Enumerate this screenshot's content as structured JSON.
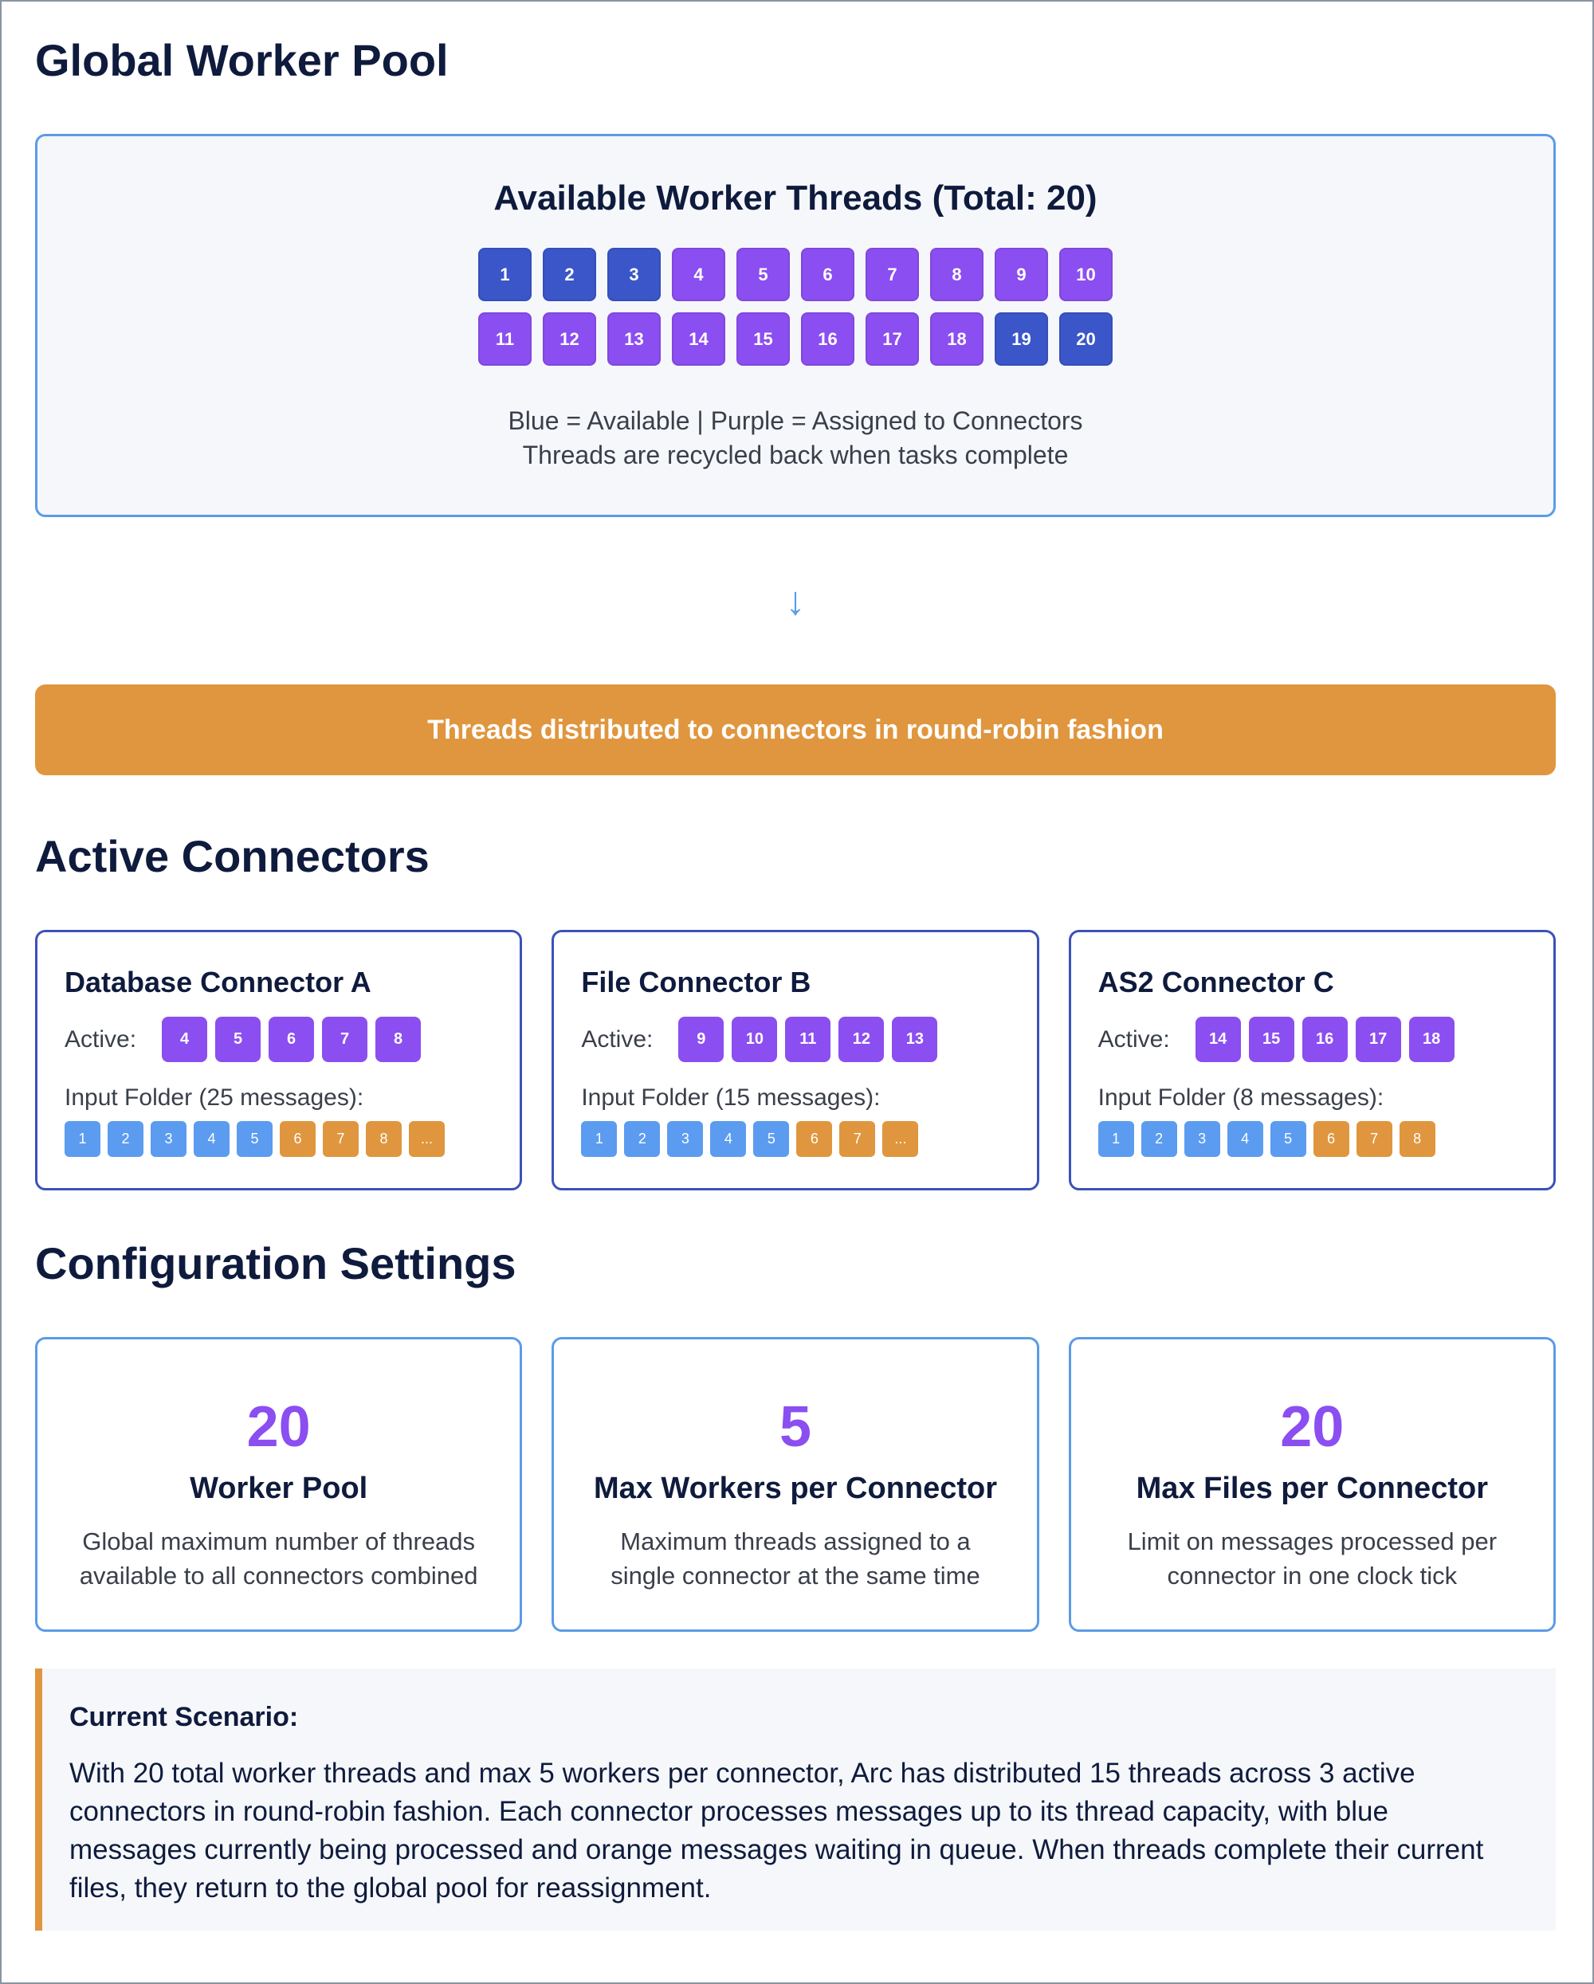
{
  "title": "Global Worker Pool",
  "pool": {
    "title": "Available Worker Threads (Total: 20)",
    "threads": [
      {
        "label": "1",
        "color": "#3a56c8"
      },
      {
        "label": "2",
        "color": "#3a56c8"
      },
      {
        "label": "3",
        "color": "#3a56c8"
      },
      {
        "label": "4",
        "color": "#8b4ef0"
      },
      {
        "label": "5",
        "color": "#8b4ef0"
      },
      {
        "label": "6",
        "color": "#8b4ef0"
      },
      {
        "label": "7",
        "color": "#8b4ef0"
      },
      {
        "label": "8",
        "color": "#8b4ef0"
      },
      {
        "label": "9",
        "color": "#8b4ef0"
      },
      {
        "label": "10",
        "color": "#8b4ef0"
      },
      {
        "label": "11",
        "color": "#8b4ef0"
      },
      {
        "label": "12",
        "color": "#8b4ef0"
      },
      {
        "label": "13",
        "color": "#8b4ef0"
      },
      {
        "label": "14",
        "color": "#8b4ef0"
      },
      {
        "label": "15",
        "color": "#8b4ef0"
      },
      {
        "label": "16",
        "color": "#8b4ef0"
      },
      {
        "label": "17",
        "color": "#8b4ef0"
      },
      {
        "label": "18",
        "color": "#8b4ef0"
      },
      {
        "label": "19",
        "color": "#3a56c8"
      },
      {
        "label": "20",
        "color": "#3a56c8"
      }
    ],
    "legend": "Blue = Available | Purple = Assigned to Connectors",
    "note": "Threads are recycled back when tasks complete"
  },
  "arrow": "↓",
  "banner": "Threads distributed to connectors in round-robin fashion",
  "connectors_heading": "Active Connectors",
  "connectors": [
    {
      "name": "Database Connector A",
      "active_label": "Active:",
      "threads": [
        "4",
        "5",
        "6",
        "7",
        "8"
      ],
      "folder_label": "Input Folder (25 messages):",
      "messages": [
        {
          "label": "1",
          "color": "#5b9cf0"
        },
        {
          "label": "2",
          "color": "#5b9cf0"
        },
        {
          "label": "3",
          "color": "#5b9cf0"
        },
        {
          "label": "4",
          "color": "#5b9cf0"
        },
        {
          "label": "5",
          "color": "#5b9cf0"
        },
        {
          "label": "6",
          "color": "#e0963e"
        },
        {
          "label": "7",
          "color": "#e0963e"
        },
        {
          "label": "8",
          "color": "#e0963e"
        },
        {
          "label": "...",
          "color": "#e0963e"
        }
      ]
    },
    {
      "name": "File Connector B",
      "active_label": "Active:",
      "threads": [
        "9",
        "10",
        "11",
        "12",
        "13"
      ],
      "folder_label": "Input Folder (15 messages):",
      "messages": [
        {
          "label": "1",
          "color": "#5b9cf0"
        },
        {
          "label": "2",
          "color": "#5b9cf0"
        },
        {
          "label": "3",
          "color": "#5b9cf0"
        },
        {
          "label": "4",
          "color": "#5b9cf0"
        },
        {
          "label": "5",
          "color": "#5b9cf0"
        },
        {
          "label": "6",
          "color": "#e0963e"
        },
        {
          "label": "7",
          "color": "#e0963e"
        },
        {
          "label": "...",
          "color": "#e0963e"
        }
      ]
    },
    {
      "name": "AS2 Connector C",
      "active_label": "Active:",
      "threads": [
        "14",
        "15",
        "16",
        "17",
        "18"
      ],
      "folder_label": "Input Folder (8 messages):",
      "messages": [
        {
          "label": "1",
          "color": "#5b9cf0"
        },
        {
          "label": "2",
          "color": "#5b9cf0"
        },
        {
          "label": "3",
          "color": "#5b9cf0"
        },
        {
          "label": "4",
          "color": "#5b9cf0"
        },
        {
          "label": "5",
          "color": "#5b9cf0"
        },
        {
          "label": "6",
          "color": "#e0963e"
        },
        {
          "label": "7",
          "color": "#e0963e"
        },
        {
          "label": "8",
          "color": "#e0963e"
        }
      ]
    }
  ],
  "config_heading": "Configuration Settings",
  "settings": [
    {
      "value": "20",
      "title": "Worker Pool",
      "description": "Global maximum number of threads available to all connectors combined"
    },
    {
      "value": "5",
      "title": "Max Workers per Connector",
      "description": "Maximum threads assigned to a single connector at the same time"
    },
    {
      "value": "20",
      "title": "Max Files per Connector",
      "description": "Limit on messages processed per connector in one clock tick"
    }
  ],
  "scenario": {
    "title": "Current Scenario:",
    "text": "With 20 total worker threads and max 5 workers per connector, Arc has distributed 15 threads across 3 active connectors in round-robin fashion. Each connector processes messages up to its thread capacity, with blue messages currently being processed and orange messages waiting in queue. When threads complete their current files, they return to the global pool for reassignment."
  }
}
